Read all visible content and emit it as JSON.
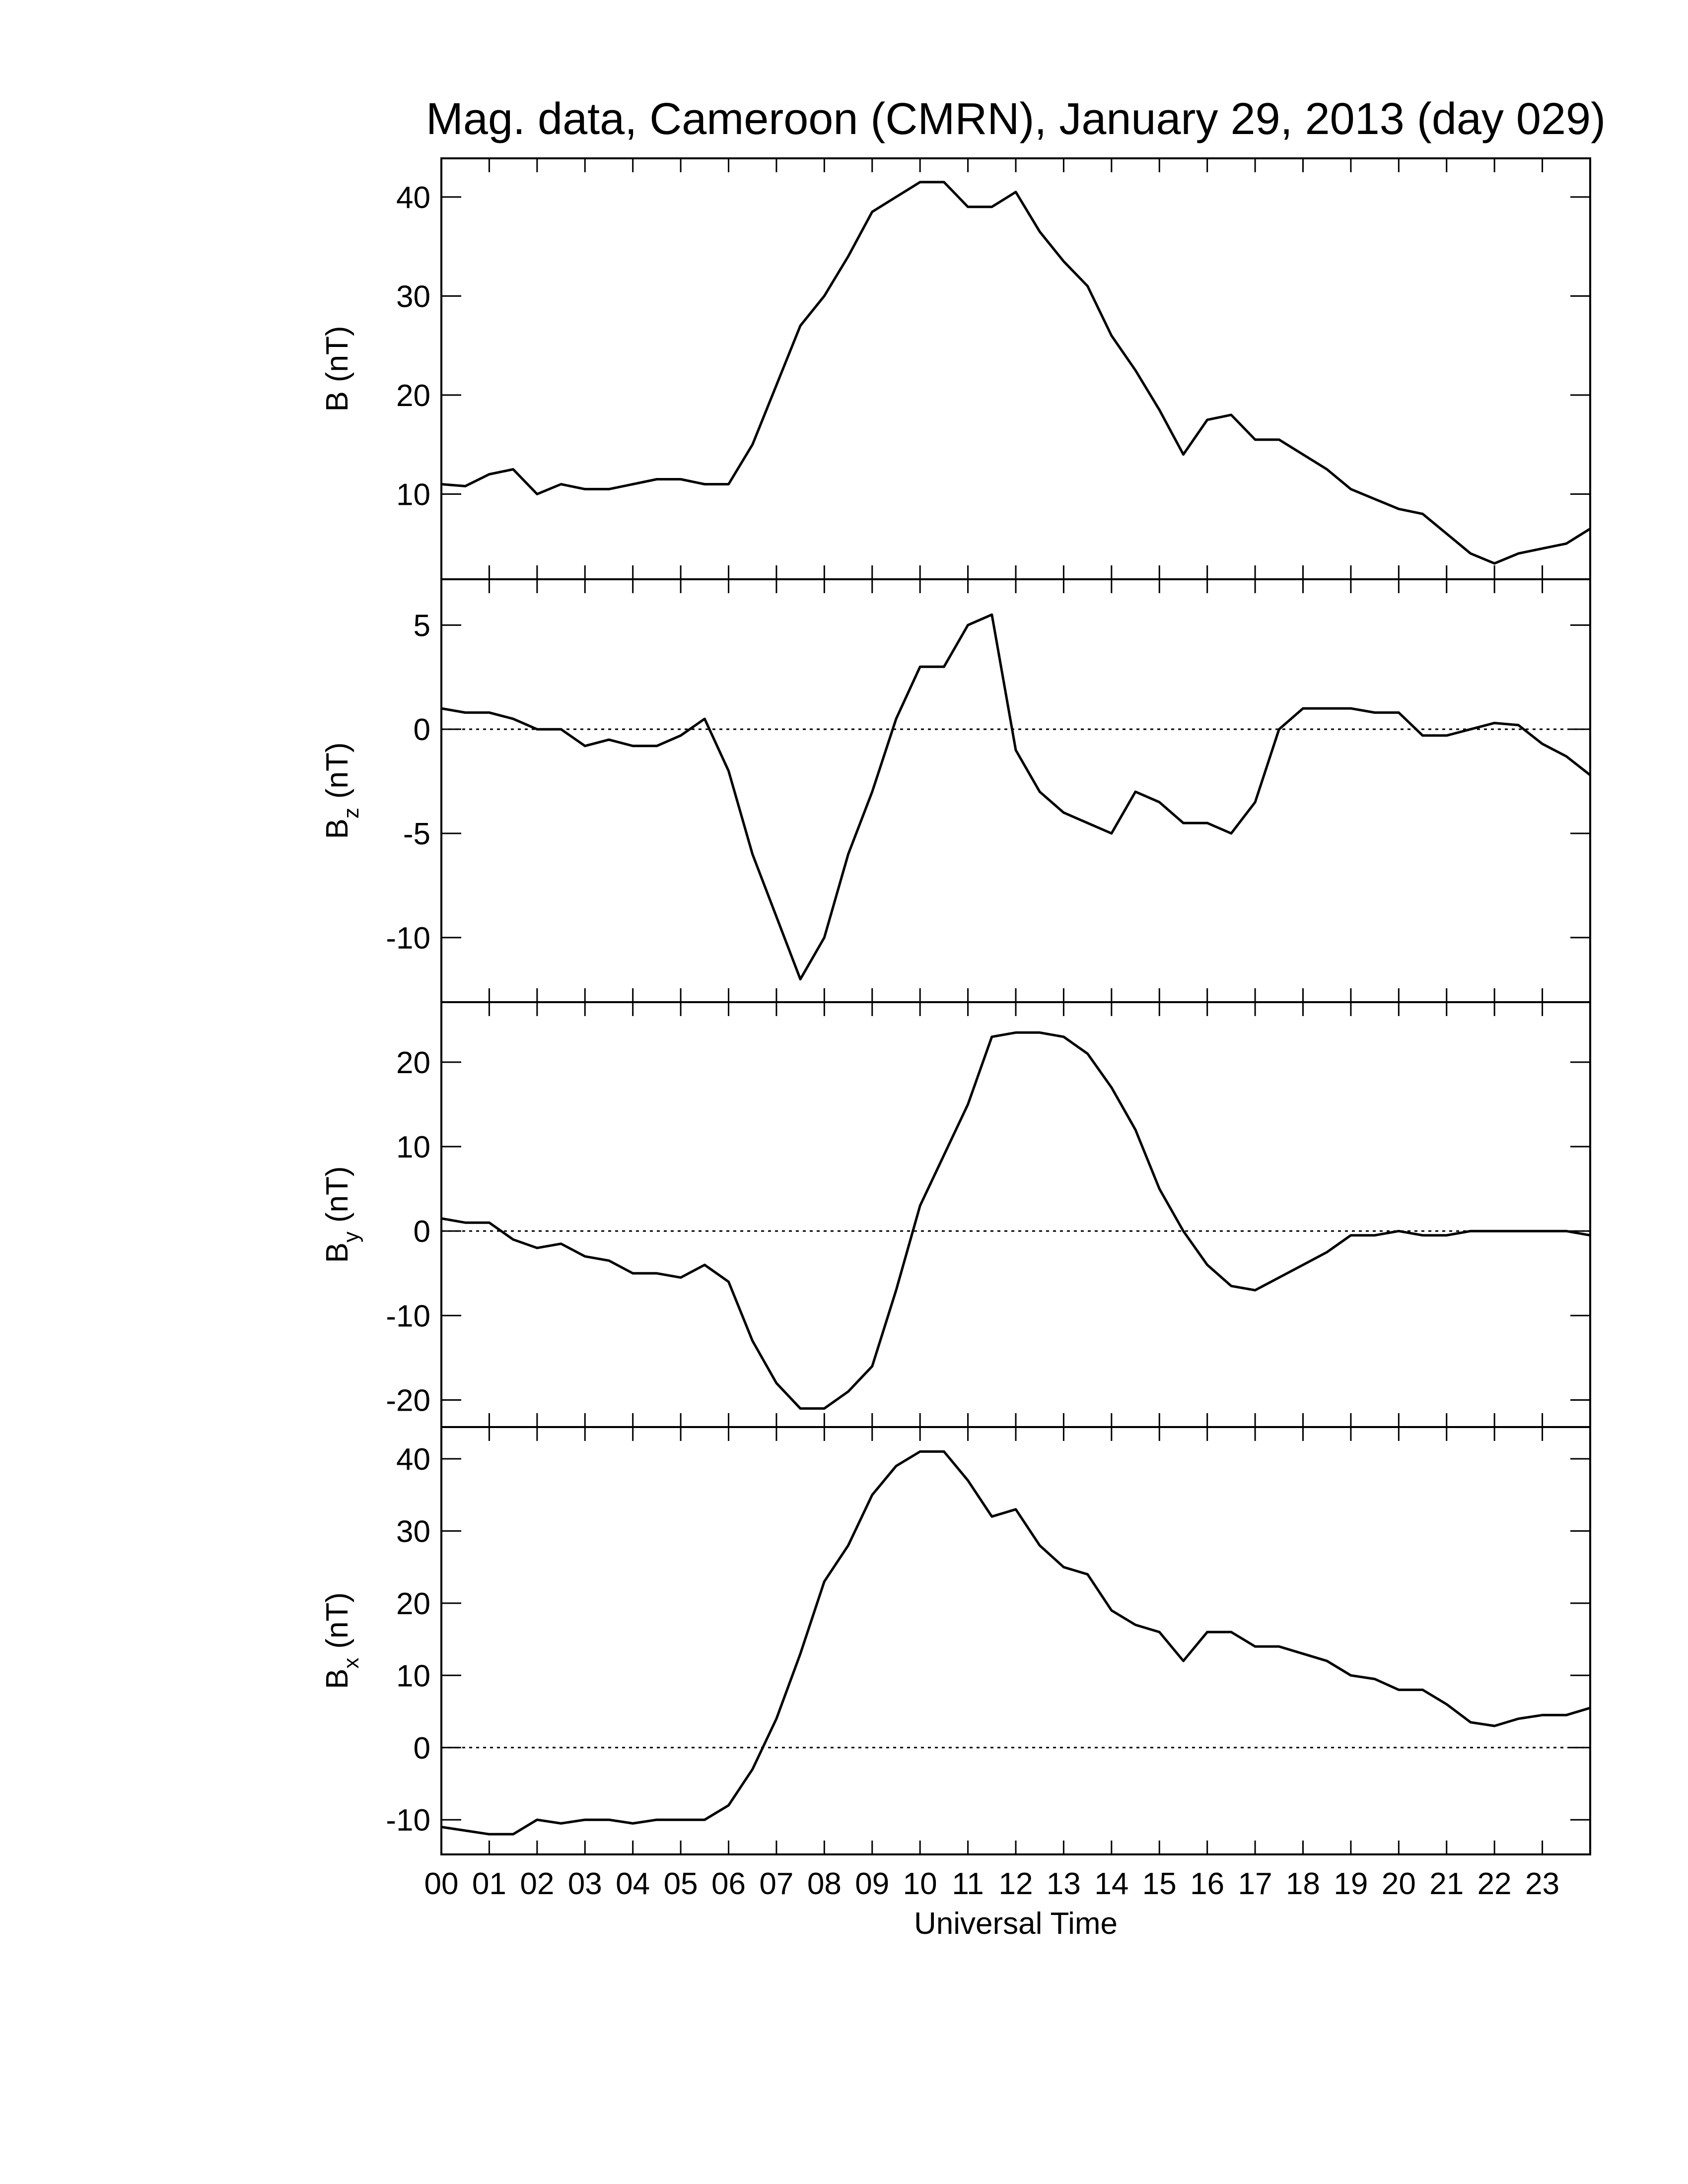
{
  "chart_data": [
    {
      "type": "line",
      "title": "Mag. data, Cameroon (CMRN), January 29, 2013 (day 029)",
      "ylabel": "B",
      "ylabel_unit": "(nT)",
      "color": "#000000",
      "x": [
        0,
        0.5,
        1,
        1.5,
        2,
        2.5,
        3,
        3.5,
        4,
        4.5,
        5,
        5.5,
        6,
        6.5,
        7,
        7.5,
        8,
        8.5,
        9,
        9.5,
        10,
        10.5,
        11,
        11.5,
        12,
        12.5,
        13,
        13.5,
        14,
        14.5,
        15,
        15.5,
        16,
        16.5,
        17,
        17.5,
        18,
        18.5,
        19,
        19.5,
        20,
        20.5,
        21,
        21.5,
        22,
        22.5,
        23,
        23.5,
        24
      ],
      "values": [
        11,
        10.8,
        12,
        12.5,
        10,
        11,
        10.5,
        10.5,
        11,
        11.5,
        11.5,
        11,
        11,
        15,
        21,
        27,
        30,
        34,
        38.5,
        40,
        41.5,
        41.5,
        39,
        39,
        40.5,
        36.5,
        33.5,
        31,
        26,
        22.5,
        18.5,
        14,
        17.5,
        18,
        15.5,
        15.5,
        14,
        12.5,
        10.5,
        9.5,
        8.5,
        8,
        6,
        4,
        3,
        4,
        4.5,
        5,
        6.5
      ],
      "xlim": [
        0,
        24
      ],
      "xticks": [
        0,
        1,
        2,
        3,
        4,
        5,
        6,
        7,
        8,
        9,
        10,
        11,
        12,
        13,
        14,
        15,
        16,
        17,
        18,
        19,
        20,
        21,
        22,
        23
      ],
      "ylim": [
        1.4,
        43.9
      ],
      "yticks": [
        10,
        20,
        30,
        40
      ]
    },
    {
      "type": "line",
      "ylabel": "B",
      "ylabel_subscript": "z",
      "ylabel_unit": "(nT)",
      "color": "#000000",
      "reference_line": 0,
      "x": [
        0,
        0.5,
        1,
        1.5,
        2,
        2.5,
        3,
        3.5,
        4,
        4.5,
        5,
        5.5,
        6,
        6.5,
        7,
        7.5,
        8,
        8.5,
        9,
        9.5,
        10,
        10.5,
        11,
        11.5,
        12,
        12.5,
        13,
        13.5,
        14,
        14.5,
        15,
        15.5,
        16,
        16.5,
        17,
        17.5,
        18,
        18.5,
        19,
        19.5,
        20,
        20.5,
        21,
        21.5,
        22,
        22.5,
        23,
        23.5,
        24
      ],
      "values": [
        1,
        0.8,
        0.8,
        0.5,
        0,
        0,
        -0.8,
        -0.5,
        -0.8,
        -0.8,
        -0.3,
        0.5,
        -2,
        -6,
        -9,
        -12,
        -10,
        -6,
        -3,
        0.5,
        3,
        3,
        5,
        5.5,
        -1,
        -3,
        -4,
        -4.5,
        -5,
        -3,
        -3.5,
        -4.5,
        -4.5,
        -5,
        -3.5,
        0,
        1,
        1,
        1,
        0.8,
        0.8,
        -0.3,
        -0.3,
        0,
        0.3,
        0.2,
        -0.7,
        -1.3,
        -2.2
      ],
      "xlim": [
        0,
        24
      ],
      "xticks": [
        0,
        1,
        2,
        3,
        4,
        5,
        6,
        7,
        8,
        9,
        10,
        11,
        12,
        13,
        14,
        15,
        16,
        17,
        18,
        19,
        20,
        21,
        22,
        23
      ],
      "ylim": [
        -13.1,
        7.2
      ],
      "yticks": [
        -10,
        -5,
        0,
        5
      ]
    },
    {
      "type": "line",
      "ylabel": "B",
      "ylabel_subscript": "y",
      "ylabel_unit": "(nT)",
      "color": "#000000",
      "reference_line": 0,
      "x": [
        0,
        0.5,
        1,
        1.5,
        2,
        2.5,
        3,
        3.5,
        4,
        4.5,
        5,
        5.5,
        6,
        6.5,
        7,
        7.5,
        8,
        8.5,
        9,
        9.5,
        10,
        10.5,
        11,
        11.5,
        12,
        12.5,
        13,
        13.5,
        14,
        14.5,
        15,
        15.5,
        16,
        16.5,
        17,
        17.5,
        18,
        18.5,
        19,
        19.5,
        20,
        20.5,
        21,
        21.5,
        22,
        22.5,
        23,
        23.5,
        24
      ],
      "values": [
        1.5,
        1,
        1,
        -1,
        -2,
        -1.5,
        -3,
        -3.5,
        -5,
        -5,
        -5.5,
        -4,
        -6,
        -13,
        -18,
        -21,
        -21,
        -19,
        -16,
        -7,
        3,
        9,
        15,
        23,
        23.5,
        23.5,
        23,
        21,
        17,
        12,
        5,
        0,
        -4,
        -6.5,
        -7,
        -5.5,
        -4,
        -2.5,
        -0.5,
        -0.5,
        0,
        -0.5,
        -0.5,
        0,
        0,
        0,
        0,
        0,
        -0.5
      ],
      "xlim": [
        0,
        24
      ],
      "xticks": [
        0,
        1,
        2,
        3,
        4,
        5,
        6,
        7,
        8,
        9,
        10,
        11,
        12,
        13,
        14,
        15,
        16,
        17,
        18,
        19,
        20,
        21,
        22,
        23
      ],
      "ylim": [
        -23.2,
        27.1
      ],
      "yticks": [
        -20,
        -10,
        0,
        10,
        20
      ]
    },
    {
      "type": "line",
      "ylabel": "B",
      "ylabel_subscript": "x",
      "ylabel_unit": "(nT)",
      "xlabel": "Universal Time",
      "color": "#000000",
      "reference_line": 0,
      "x": [
        0,
        0.5,
        1,
        1.5,
        2,
        2.5,
        3,
        3.5,
        4,
        4.5,
        5,
        5.5,
        6,
        6.5,
        7,
        7.5,
        8,
        8.5,
        9,
        9.5,
        10,
        10.5,
        11,
        11.5,
        12,
        12.5,
        13,
        13.5,
        14,
        14.5,
        15,
        15.5,
        16,
        16.5,
        17,
        17.5,
        18,
        18.5,
        19,
        19.5,
        20,
        20.5,
        21,
        21.5,
        22,
        22.5,
        23,
        23.5,
        24
      ],
      "values": [
        -11,
        -11.5,
        -12,
        -12,
        -10,
        -10.5,
        -10,
        -10,
        -10.5,
        -10,
        -10,
        -10,
        -8,
        -3,
        4,
        13,
        23,
        28,
        35,
        39,
        41,
        41,
        37,
        32,
        33,
        28,
        25,
        24,
        19,
        17,
        16,
        12,
        16,
        16,
        14,
        14,
        13,
        12,
        10,
        9.5,
        8,
        8,
        6,
        3.5,
        3,
        4,
        4.5,
        4.5,
        5.5
      ],
      "xlim": [
        0,
        24
      ],
      "xticks": [
        {
          "value": 0,
          "label": "00"
        },
        {
          "value": 1,
          "label": "01"
        },
        {
          "value": 2,
          "label": "02"
        },
        {
          "value": 3,
          "label": "03"
        },
        {
          "value": 4,
          "label": "04"
        },
        {
          "value": 5,
          "label": "05"
        },
        {
          "value": 6,
          "label": "06"
        },
        {
          "value": 7,
          "label": "07"
        },
        {
          "value": 8,
          "label": "08"
        },
        {
          "value": 9,
          "label": "09"
        },
        {
          "value": 10,
          "label": "10"
        },
        {
          "value": 11,
          "label": "11"
        },
        {
          "value": 12,
          "label": "12"
        },
        {
          "value": 13,
          "label": "13"
        },
        {
          "value": 14,
          "label": "14"
        },
        {
          "value": 15,
          "label": "15"
        },
        {
          "value": 16,
          "label": "16"
        },
        {
          "value": 17,
          "label": "17"
        },
        {
          "value": 18,
          "label": "18"
        },
        {
          "value": 19,
          "label": "19"
        },
        {
          "value": 20,
          "label": "20"
        },
        {
          "value": 21,
          "label": "21"
        },
        {
          "value": 22,
          "label": "22"
        },
        {
          "value": 23,
          "label": "23"
        }
      ],
      "ylim": [
        -14.8,
        44.4
      ],
      "yticks": [
        -10,
        0,
        10,
        20,
        30,
        40
      ]
    }
  ]
}
